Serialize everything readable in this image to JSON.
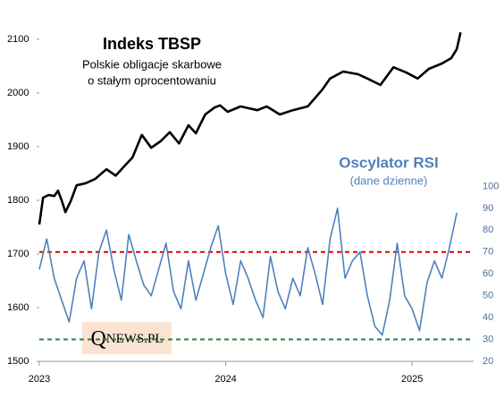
{
  "chart_data": {
    "type": "line",
    "title": "Indeks TBSP",
    "subtitle": [
      "Polskie obligacje skarbowe",
      "o stałym oprocentowaniu"
    ],
    "rsi_title": "Oscylator RSI",
    "rsi_subtitle": "(dane dzienne)",
    "logo": "QNEWS.PL",
    "xlim": [
      2023,
      2025.33
    ],
    "xticks": [
      2023,
      2024,
      2025
    ],
    "ylim": [
      1500,
      2160
    ],
    "yticks": [
      1500,
      1600,
      1700,
      1800,
      1900,
      2000,
      2100
    ],
    "y2lim": [
      20,
      182
    ],
    "y2ticks": [
      20,
      30,
      40,
      50,
      60,
      70,
      80,
      90,
      100
    ],
    "hlines": [
      {
        "value": 70,
        "axis": "y2",
        "color": "#e00000"
      },
      {
        "value": 30,
        "axis": "y2",
        "color": "#1a8a3a"
      }
    ],
    "series": [
      {
        "name": "Indeks TBSP",
        "color": "#000000",
        "x": [
          2023.0,
          2023.02,
          2023.05,
          2023.08,
          2023.1,
          2023.12,
          2023.14,
          2023.17,
          2023.2,
          2023.25,
          2023.3,
          2023.36,
          2023.41,
          2023.46,
          2023.5,
          2023.55,
          2023.6,
          2023.65,
          2023.7,
          2023.75,
          2023.8,
          2023.84,
          2023.89,
          2023.94,
          2023.97,
          2024.01,
          2024.08,
          2024.17,
          2024.22,
          2024.29,
          2024.36,
          2024.44,
          2024.52,
          2024.56,
          2024.63,
          2024.71,
          2024.76,
          2024.83,
          2024.9,
          2024.97,
          2025.03,
          2025.09,
          2025.16,
          2025.21,
          2025.24,
          2025.26
        ],
        "values": [
          1755,
          1805,
          1810,
          1808,
          1818,
          1800,
          1778,
          1800,
          1828,
          1832,
          1840,
          1858,
          1846,
          1865,
          1880,
          1922,
          1898,
          1910,
          1927,
          1906,
          1940,
          1925,
          1960,
          1973,
          1977,
          1965,
          1975,
          1968,
          1975,
          1960,
          1968,
          1975,
          2007,
          2027,
          2040,
          2035,
          2027,
          2015,
          2048,
          2038,
          2027,
          2045,
          2055,
          2065,
          2082,
          2113
        ]
      },
      {
        "name": "Oscylator RSI",
        "color": "#4f81bd",
        "axis": "y2",
        "x": [
          2023.0,
          2023.04,
          2023.08,
          2023.12,
          2023.16,
          2023.2,
          2023.24,
          2023.28,
          2023.32,
          2023.36,
          2023.4,
          2023.44,
          2023.48,
          2023.52,
          2023.56,
          2023.6,
          2023.64,
          2023.68,
          2023.72,
          2023.76,
          2023.8,
          2023.84,
          2023.88,
          2023.92,
          2023.96,
          2024.0,
          2024.04,
          2024.08,
          2024.12,
          2024.16,
          2024.2,
          2024.24,
          2024.28,
          2024.32,
          2024.36,
          2024.4,
          2024.44,
          2024.48,
          2024.52,
          2024.56,
          2024.6,
          2024.64,
          2024.68,
          2024.72,
          2024.76,
          2024.8,
          2024.84,
          2024.88,
          2024.92,
          2024.96,
          2025.0,
          2025.04,
          2025.08,
          2025.12,
          2025.16,
          2025.2,
          2025.24
        ],
        "values": [
          62,
          76,
          58,
          48,
          38,
          58,
          66,
          44,
          70,
          80,
          62,
          48,
          78,
          66,
          55,
          50,
          62,
          74,
          52,
          44,
          66,
          48,
          60,
          72,
          82,
          60,
          46,
          66,
          58,
          48,
          40,
          68,
          52,
          44,
          58,
          50,
          72,
          60,
          46,
          76,
          90,
          58,
          66,
          70,
          50,
          36,
          32,
          48,
          74,
          50,
          44,
          34,
          56,
          66,
          58,
          72,
          88
        ]
      }
    ]
  }
}
